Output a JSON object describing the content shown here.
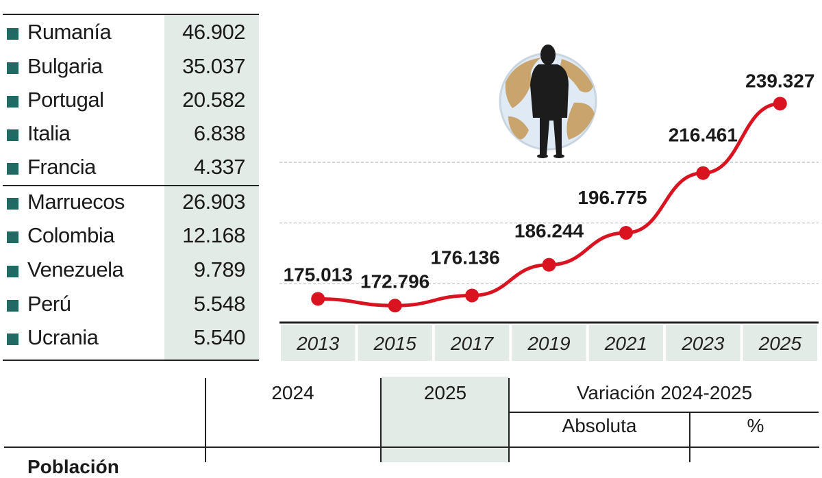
{
  "countries_eu": [
    {
      "name": "Rumanía",
      "value": "46.902"
    },
    {
      "name": "Bulgaria",
      "value": "35.037"
    },
    {
      "name": "Portugal",
      "value": "20.582"
    },
    {
      "name": "Italia",
      "value": "6.838"
    },
    {
      "name": "Francia",
      "value": "4.337"
    }
  ],
  "countries_non_eu": [
    {
      "name": "Marruecos",
      "value": "26.903"
    },
    {
      "name": "Colombia",
      "value": "12.168"
    },
    {
      "name": "Venezuela",
      "value": "9.789"
    },
    {
      "name": "Perú",
      "value": "5.548"
    },
    {
      "name": "Ucrania",
      "value": "5.540"
    }
  ],
  "colors": {
    "series": "#d9131f",
    "legend_square": "#1f6b63",
    "shade": "#e3ebe6",
    "grid": "#b8bcbc",
    "axis_cell": "#e3ebe6"
  },
  "chart_data": {
    "type": "line",
    "title": "",
    "xlabel": "",
    "ylabel": "",
    "x": [
      "2013",
      "2015",
      "2017",
      "2019",
      "2021",
      "2023",
      "2025"
    ],
    "series": [
      {
        "values": [
          175013,
          172796,
          176136,
          186244,
          196775,
          216461,
          239327
        ],
        "labels": [
          "175.013",
          "172.796",
          "176.136",
          "186.244",
          "196.775",
          "216.461",
          "239.327"
        ]
      }
    ],
    "ylim": [
      160000,
      250000
    ],
    "grid": true
  },
  "detail_table": {
    "col_2024": "2024",
    "col_2025": "2025",
    "col_variation": "Variación 2024-2025",
    "col_absolute": "Absoluta",
    "col_percent": "%",
    "row_partial": "Población"
  },
  "icons": {
    "illustration": "person-globe-icon"
  }
}
